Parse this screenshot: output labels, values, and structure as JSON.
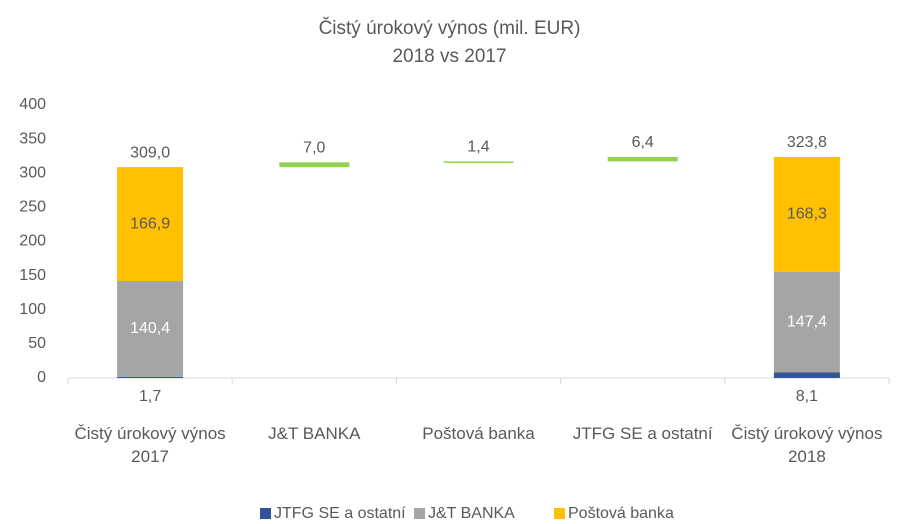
{
  "chart_data": {
    "type": "waterfall",
    "title": "Čistý úrokový výnos (mil. EUR)",
    "subtitle": "2018 vs 2017",
    "categories": [
      "Čistý úrokový výnos 2017",
      "J&T BANKA",
      "Poštová banka",
      "JTFG SE a ostatní",
      "Čistý úrokový výnos 2018"
    ],
    "series": [
      {
        "name": "JTFG SE a ostatní",
        "color": "#2f5597",
        "values": [
          1.7,
          null,
          null,
          null,
          8.1
        ],
        "value_labels": [
          "1,7",
          null,
          null,
          null,
          "8,1"
        ]
      },
      {
        "name": "J&T BANKA",
        "color": "#a5a5a5",
        "values": [
          140.4,
          null,
          null,
          null,
          147.4
        ],
        "value_labels": [
          "140,4",
          null,
          null,
          null,
          "147,4"
        ]
      },
      {
        "name": "Poštová banka",
        "color": "#ffc000",
        "values": [
          166.9,
          null,
          null,
          null,
          168.3
        ],
        "value_labels": [
          "166,9",
          null,
          null,
          null,
          "168,3"
        ]
      }
    ],
    "totals": {
      "values": [
        309.0,
        null,
        null,
        null,
        323.8
      ],
      "value_labels": [
        "309,0",
        null,
        null,
        null,
        "323,8"
      ]
    },
    "changes": {
      "color": "#92d050",
      "values": [
        null,
        7.0,
        1.4,
        6.4,
        null
      ],
      "value_labels": [
        null,
        "7,0",
        "1,4",
        "6,4",
        null
      ]
    },
    "ylim": [
      0,
      400
    ],
    "yticks": [
      0,
      50,
      100,
      150,
      200,
      250,
      300,
      350,
      400
    ],
    "legend": "bottom"
  }
}
